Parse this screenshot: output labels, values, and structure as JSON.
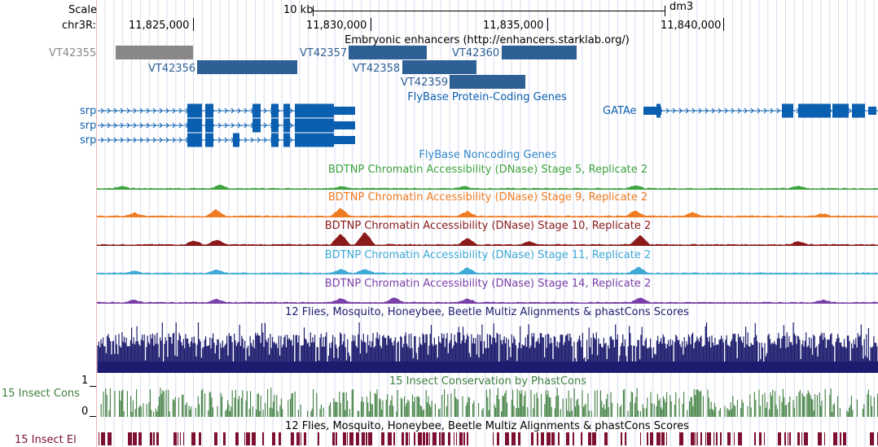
{
  "ruler": {
    "scale_label": "Scale",
    "scale_bar_label": "10 kb",
    "assembly": "dm3",
    "chrom_label": "chr3R:",
    "positions": [
      "11,825,000",
      "11,830,000",
      "11,835,000",
      "11,840,000"
    ]
  },
  "tracks": {
    "enhancers": {
      "title": "Embryonic enhancers (http://enhancers.starklab.org/)",
      "items": [
        {
          "name": "VT42355",
          "color": "#888888",
          "dimmed": true
        },
        {
          "name": "VT42356",
          "color": "#2e5f95"
        },
        {
          "name": "VT42357",
          "color": "#2e5f95"
        },
        {
          "name": "VT42358",
          "color": "#2e5f95"
        },
        {
          "name": "VT42359",
          "color": "#2e5f95"
        },
        {
          "name": "VT42360",
          "color": "#2e5f95"
        }
      ]
    },
    "protein_coding": {
      "title": "FlyBase Protein-Coding Genes",
      "genes": [
        "srp",
        "srp",
        "srp",
        "GATAe"
      ],
      "color": "#0b5fb0"
    },
    "noncoding": {
      "title": "FlyBase Noncoding Genes",
      "color": "#2f86c8"
    },
    "dnase": [
      {
        "title": "BDTNP Chromatin Accessibility (DNase) Stage 5, Replicate 2",
        "color": "#3ea43e"
      },
      {
        "title": "BDTNP Chromatin Accessibility (DNase) Stage 9, Replicate 2",
        "color": "#f07c22"
      },
      {
        "title": "BDTNP Chromatin Accessibility (DNase) Stage 10, Replicate 2",
        "color": "#8b1a1a"
      },
      {
        "title": "BDTNP Chromatin Accessibility (DNase) Stage 11, Replicate 2",
        "color": "#3fa9d6"
      },
      {
        "title": "BDTNP Chromatin Accessibility (DNase) Stage 14, Replicate 2",
        "color": "#7a3fa8"
      }
    ],
    "multiz": {
      "title": "12 Flies, Mosquito, Honeybee, Beetle Multiz Alignments & phastCons Scores",
      "color": "#1c1c6e"
    },
    "phastcons": {
      "title": "15 Insect Conservation by PhastCons",
      "side_label": "15 Insect Cons",
      "axis_top": "1",
      "axis_bottom": "0",
      "color": "#3f7f3f"
    },
    "elements": {
      "title": "12 Flies, Mosquito, Honeybee, Beetle Multiz Alignments & phastCons Scores",
      "side_label": "15 Insect El",
      "color": "#7d1030"
    }
  }
}
